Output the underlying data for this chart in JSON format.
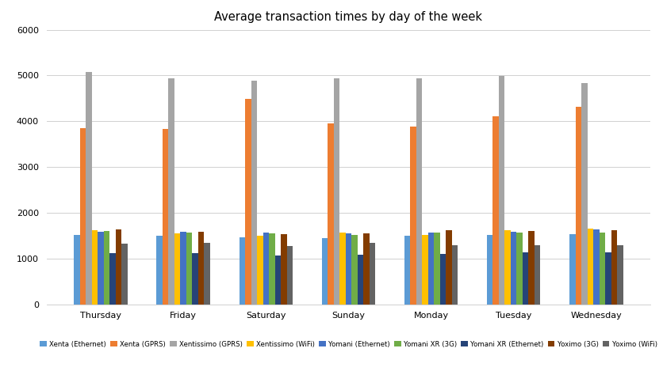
{
  "title": "Average transaction times by day of the week",
  "days": [
    "Thursday",
    "Friday",
    "Saturday",
    "Sunday",
    "Monday",
    "Tuesday",
    "Wednesday"
  ],
  "series": [
    {
      "name": "Xenta (Ethernet)",
      "color": "#5b9bd5",
      "values": [
        1520,
        1500,
        1460,
        1450,
        1490,
        1510,
        1530
      ]
    },
    {
      "name": "Xenta (GPRS)",
      "color": "#ed7d31",
      "values": [
        3850,
        3830,
        4490,
        3960,
        3890,
        4110,
        4320
      ]
    },
    {
      "name": "Xentissimo (GPRS)",
      "color": "#a5a5a5",
      "values": [
        5070,
        4940,
        4890,
        4940,
        4940,
        4990,
        4830
      ]
    },
    {
      "name": "Xentissimo (WiFi)",
      "color": "#ffc000",
      "values": [
        1620,
        1550,
        1490,
        1560,
        1510,
        1620,
        1650
      ]
    },
    {
      "name": "Yomani (Ethernet)",
      "color": "#4472c4",
      "values": [
        1590,
        1590,
        1560,
        1550,
        1570,
        1590,
        1640
      ]
    },
    {
      "name": "Yomani XR (3G)",
      "color": "#70ad47",
      "values": [
        1600,
        1560,
        1550,
        1510,
        1570,
        1570,
        1570
      ]
    },
    {
      "name": "Yomani XR (Ethernet)",
      "color": "#264478",
      "values": [
        1110,
        1110,
        1060,
        1080,
        1100,
        1130,
        1130
      ]
    },
    {
      "name": "Yoximo (3G)",
      "color": "#833c00",
      "values": [
        1630,
        1590,
        1540,
        1550,
        1610,
        1600,
        1620
      ]
    },
    {
      "name": "Yoximo (WiFi)",
      "color": "#636363",
      "values": [
        1330,
        1340,
        1280,
        1340,
        1290,
        1290,
        1290
      ]
    }
  ],
  "ylim": [
    0,
    6000
  ],
  "yticks": [
    0,
    1000,
    2000,
    3000,
    4000,
    5000,
    6000
  ],
  "bar_width": 0.072,
  "background_color": "#ffffff",
  "grid_color": "#d0d0d0"
}
